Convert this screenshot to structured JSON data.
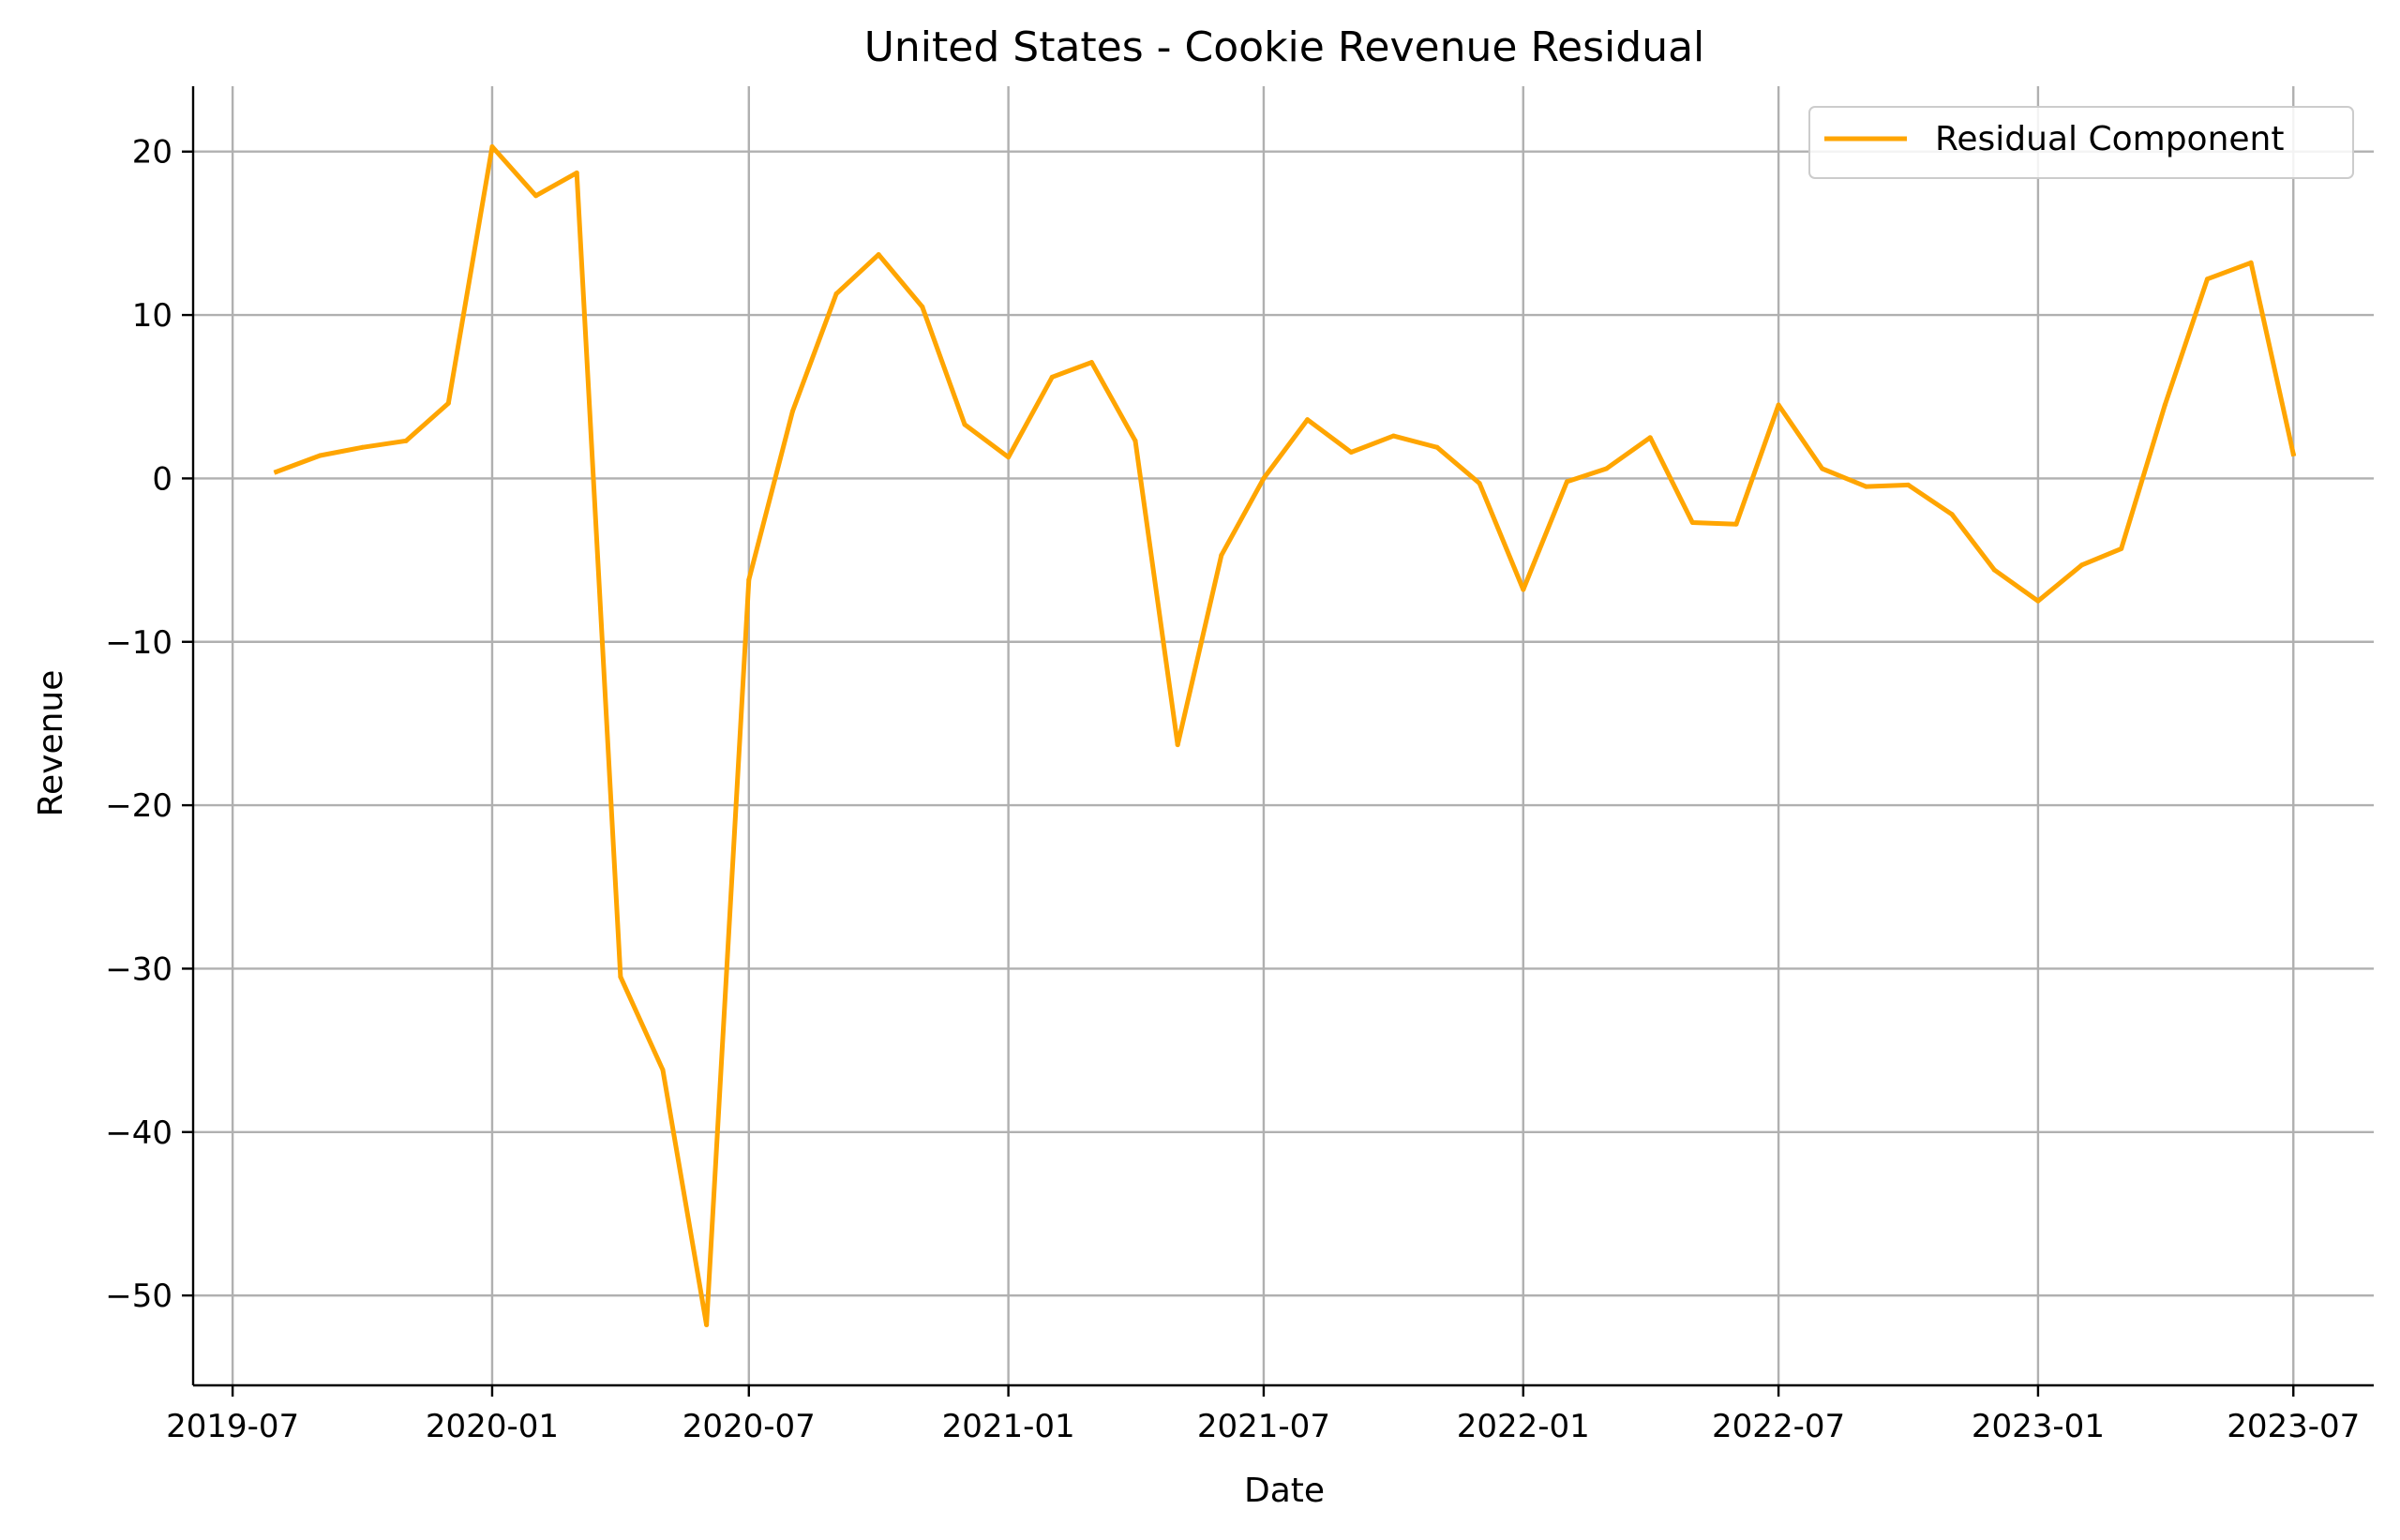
{
  "chart_data": {
    "type": "line",
    "title": "United States - Cookie Revenue Residual",
    "xlabel": "Date",
    "ylabel": "Revenue",
    "x_tick_labels": [
      "2019-07",
      "2020-01",
      "2020-07",
      "2021-01",
      "2021-07",
      "2022-01",
      "2022-07",
      "2023-01",
      "2023-07"
    ],
    "y_ticks": [
      20,
      10,
      0,
      -10,
      -20,
      -30,
      -40,
      -50
    ],
    "y_tick_labels": [
      "20",
      "10",
      "0",
      "−10",
      "−20",
      "−30",
      "−40",
      "−50"
    ],
    "ylim": [
      -55.5,
      24
    ],
    "xlim": [
      "2019-06-03",
      "2023-08-27"
    ],
    "grid": true,
    "legend": {
      "position": "top-right"
    },
    "series": [
      {
        "name": "Residual Component",
        "color": "#ffa500",
        "points": [
          {
            "x": "2019-08-01",
            "y": 0.4
          },
          {
            "x": "2019-09-01",
            "y": 1.4
          },
          {
            "x": "2019-10-01",
            "y": 1.9
          },
          {
            "x": "2019-11-01",
            "y": 2.3
          },
          {
            "x": "2019-12-01",
            "y": 4.6
          },
          {
            "x": "2020-01-01",
            "y": 20.3
          },
          {
            "x": "2020-02-01",
            "y": 17.3
          },
          {
            "x": "2020-03-01",
            "y": 18.7
          },
          {
            "x": "2020-04-01",
            "y": -30.5
          },
          {
            "x": "2020-05-01",
            "y": -36.2
          },
          {
            "x": "2020-06-01",
            "y": -51.8
          },
          {
            "x": "2020-07-01",
            "y": -6.2
          },
          {
            "x": "2020-08-01",
            "y": 4.1
          },
          {
            "x": "2020-09-01",
            "y": 11.3
          },
          {
            "x": "2020-10-01",
            "y": 13.7
          },
          {
            "x": "2020-11-01",
            "y": 10.5
          },
          {
            "x": "2020-12-01",
            "y": 3.3
          },
          {
            "x": "2021-01-01",
            "y": 1.3
          },
          {
            "x": "2021-02-01",
            "y": 6.2
          },
          {
            "x": "2021-03-01",
            "y": 7.1
          },
          {
            "x": "2021-04-01",
            "y": 2.3
          },
          {
            "x": "2021-05-01",
            "y": -16.3
          },
          {
            "x": "2021-06-01",
            "y": -4.7
          },
          {
            "x": "2021-07-01",
            "y": 0.0
          },
          {
            "x": "2021-08-01",
            "y": 3.6
          },
          {
            "x": "2021-09-01",
            "y": 1.6
          },
          {
            "x": "2021-10-01",
            "y": 2.6
          },
          {
            "x": "2021-11-01",
            "y": 1.9
          },
          {
            "x": "2021-12-01",
            "y": -0.3
          },
          {
            "x": "2022-01-01",
            "y": -6.8
          },
          {
            "x": "2022-02-01",
            "y": -0.2
          },
          {
            "x": "2022-03-01",
            "y": 0.6
          },
          {
            "x": "2022-04-01",
            "y": 2.5
          },
          {
            "x": "2022-05-01",
            "y": -2.7
          },
          {
            "x": "2022-06-01",
            "y": -2.8
          },
          {
            "x": "2022-07-01",
            "y": 4.5
          },
          {
            "x": "2022-08-01",
            "y": 0.6
          },
          {
            "x": "2022-09-01",
            "y": -0.5
          },
          {
            "x": "2022-10-01",
            "y": -0.4
          },
          {
            "x": "2022-11-01",
            "y": -2.2
          },
          {
            "x": "2022-12-01",
            "y": -5.6
          },
          {
            "x": "2023-01-01",
            "y": -7.5
          },
          {
            "x": "2023-02-01",
            "y": -5.3
          },
          {
            "x": "2023-03-01",
            "y": -4.3
          },
          {
            "x": "2023-04-01",
            "y": 4.5
          },
          {
            "x": "2023-05-01",
            "y": 12.2
          },
          {
            "x": "2023-06-01",
            "y": 13.2
          },
          {
            "x": "2023-07-01",
            "y": 1.5
          }
        ]
      }
    ]
  }
}
